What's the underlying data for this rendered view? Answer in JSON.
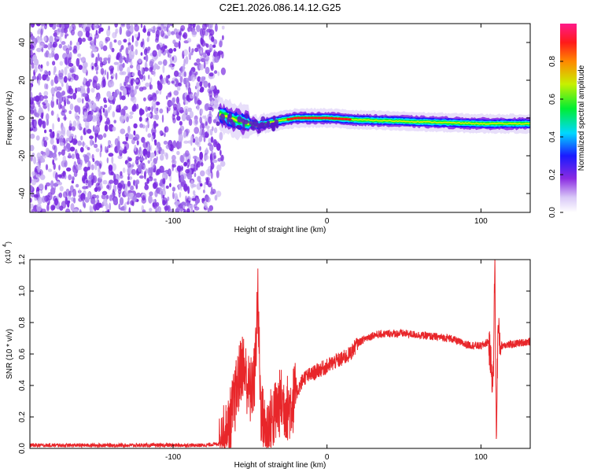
{
  "figure_title": "C2E1.2026.086.14.12.G25",
  "colors": {
    "snr_line": "#e8262a",
    "spectrogram_noise": "#7a2be0",
    "spectrogram_noise_light": "#c9b3f2"
  },
  "chart_data": [
    {
      "type": "heatmap",
      "title": "C2E1.2026.086.14.12.G25",
      "xlabel": "Height of straight line (km)",
      "ylabel": "Frequency (Hz)",
      "xlim": [
        -193,
        132
      ],
      "ylim": [
        -50,
        50
      ],
      "x_ticks": [
        -100,
        0,
        100
      ],
      "x_tick_labels": [
        "-100",
        "0",
        "100"
      ],
      "y_ticks": [
        -40,
        -20,
        0,
        20,
        40
      ],
      "y_tick_labels": [
        "-40",
        "-20",
        "0",
        "20",
        "40"
      ],
      "colorbar": {
        "label": "Normalized spectral amplitude",
        "range": [
          0,
          1
        ],
        "ticks": [
          0.0,
          0.2,
          0.4,
          0.6,
          0.8
        ],
        "tick_labels": [
          "0.0",
          "0.2",
          "0.4",
          "0.6",
          "0.8"
        ],
        "colormap": "rainbow (white-violet-blue-cyan-green-yellow-red-magenta)"
      },
      "features": {
        "noise_region_x": [
          -193,
          -70
        ],
        "signal_band_center_hz": [
          {
            "x": -70,
            "y": 2
          },
          {
            "x": -60,
            "y": -1
          },
          {
            "x": -45,
            "y": -4
          },
          {
            "x": -35,
            "y": -2
          },
          {
            "x": -20,
            "y": 0
          },
          {
            "x": 0,
            "y": 0
          },
          {
            "x": 20,
            "y": -1
          },
          {
            "x": 60,
            "y": -2
          },
          {
            "x": 100,
            "y": -3
          },
          {
            "x": 132,
            "y": -3
          }
        ],
        "peak_amplitude_region_x": [
          -25,
          15
        ]
      }
    },
    {
      "type": "line",
      "xlabel": "Height of straight line (km)",
      "ylabel": "SNR (10 * v/v)",
      "y_scale_label": "(x10^4)",
      "xlim": [
        -193,
        132
      ],
      "ylim": [
        0,
        1.2
      ],
      "x_ticks": [
        -100,
        0,
        100
      ],
      "x_tick_labels": [
        "-100",
        "0",
        "100"
      ],
      "y_ticks": [
        0.0,
        0.2,
        0.4,
        0.6,
        0.8,
        1.0,
        1.2
      ],
      "y_tick_labels": [
        "0.0",
        "0.2",
        "0.4",
        "0.6",
        "0.8",
        "1.0",
        "1.2"
      ],
      "series": [
        {
          "x": [
            -193,
            -150,
            -100,
            -80,
            -70,
            -65,
            -60,
            -55,
            -50,
            -47,
            -45,
            -43,
            -40,
            -35,
            -30,
            -25,
            -20,
            -15,
            -10,
            -5,
            0,
            5,
            10,
            15,
            20,
            25,
            30,
            40,
            50,
            60,
            70,
            80,
            90,
            100,
            105,
            108,
            109,
            110,
            111,
            113,
            115,
            120,
            125,
            132
          ],
          "y": [
            0.02,
            0.02,
            0.02,
            0.02,
            0.03,
            0.08,
            0.3,
            0.55,
            0.35,
            0.45,
            0.96,
            0.25,
            0.1,
            0.2,
            0.3,
            0.25,
            0.35,
            0.45,
            0.47,
            0.5,
            0.52,
            0.55,
            0.57,
            0.6,
            0.67,
            0.7,
            0.72,
            0.73,
            0.73,
            0.72,
            0.71,
            0.7,
            0.66,
            0.65,
            0.68,
            0.4,
            1.21,
            0.06,
            0.75,
            0.65,
            0.66,
            0.66,
            0.67,
            0.68
          ]
        }
      ]
    }
  ]
}
